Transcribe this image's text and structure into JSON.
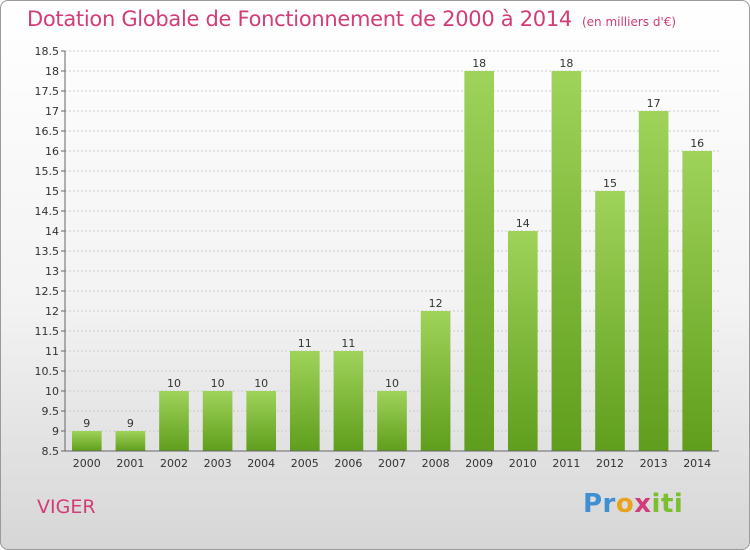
{
  "header": {
    "title": "Dotation Globale de Fonctionnement de 2000 à 2014",
    "unit": "(en milliers d'€)"
  },
  "commune": "VIGER",
  "logo": {
    "p1": "Pr",
    "p2": "o",
    "p3": "x",
    "p4": "iti"
  },
  "colors": {
    "title": "#d23c78",
    "bar_light": "#9fd35a",
    "bar_dark": "#5f9e1c",
    "grid": "#cccccc"
  },
  "chart_data": {
    "type": "bar",
    "title": "Dotation Globale de Fonctionnement de 2000 à 2014",
    "subtitle": "(en milliers d'€)",
    "xlabel": "",
    "ylabel": "",
    "categories": [
      "2000",
      "2001",
      "2002",
      "2003",
      "2004",
      "2005",
      "2006",
      "2007",
      "2008",
      "2009",
      "2010",
      "2011",
      "2012",
      "2013",
      "2014"
    ],
    "values": [
      9,
      9,
      10,
      10,
      10,
      11,
      11,
      10,
      12,
      18,
      14,
      18,
      15,
      17,
      16
    ],
    "ylim": [
      8.5,
      18.5
    ],
    "yticks": [
      "8.5",
      "9",
      "9.5",
      "10",
      "10.5",
      "11",
      "11.5",
      "12",
      "12.5",
      "13",
      "13.5",
      "14",
      "14.5",
      "15",
      "15.5",
      "16",
      "16.5",
      "17",
      "17.5",
      "18",
      "18.5"
    ],
    "grid": true,
    "legend": "none"
  }
}
